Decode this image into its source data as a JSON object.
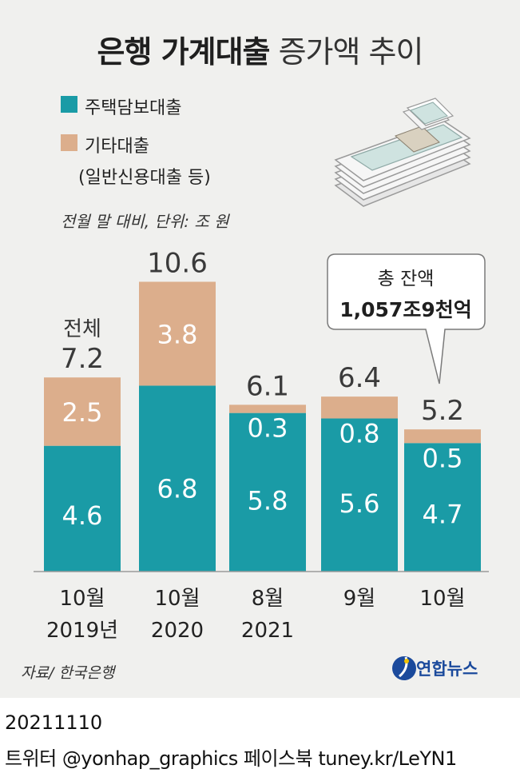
{
  "title": {
    "bold": "은행 가계대출",
    "light": "증가액 추이"
  },
  "legend": [
    {
      "label": "주택담보대출",
      "color": "#1a9ba6"
    },
    {
      "label": "기타대출",
      "color": "#dcae8c"
    },
    {
      "label": "(일반신용대출 등)"
    }
  ],
  "unit_note": "전월 말 대비, 단위: 조 원",
  "total_prefix": "전체",
  "callout": {
    "line1": "총 잔액",
    "line2": "1,057조9천억"
  },
  "source": "자료/ 한국은행",
  "logo_text": "연합뉴스",
  "date": "20211110",
  "social": "트위터 @yonhap_graphics  페이스북 tuney.kr/LeYN1",
  "colors": {
    "mortgage": "#1a9ba6",
    "other": "#dcae8c",
    "background": "#f0f0ee"
  },
  "chart_data": {
    "type": "bar",
    "stacked": true,
    "categories": [
      [
        "10월",
        "2019년"
      ],
      [
        "10월",
        "2020"
      ],
      [
        "8월",
        "2021"
      ],
      [
        "9월",
        ""
      ],
      [
        "10월",
        ""
      ]
    ],
    "series": [
      {
        "name": "주택담보대출",
        "values": [
          4.6,
          6.8,
          5.8,
          5.6,
          4.7
        ],
        "labels": [
          "4.6",
          "6.8",
          "5.8",
          "5.6",
          "4.7"
        ]
      },
      {
        "name": "기타대출",
        "values": [
          2.5,
          3.8,
          0.3,
          0.8,
          0.5
        ],
        "labels": [
          "2.5",
          "3.8",
          "0.3",
          "0.8",
          "0.5"
        ]
      }
    ],
    "totals": [
      7.2,
      10.6,
      6.1,
      6.4,
      5.2
    ],
    "total_labels": [
      "7.2",
      "10.6",
      "6.1",
      "6.4",
      "5.2"
    ],
    "ylim": [
      0,
      10.6
    ]
  }
}
